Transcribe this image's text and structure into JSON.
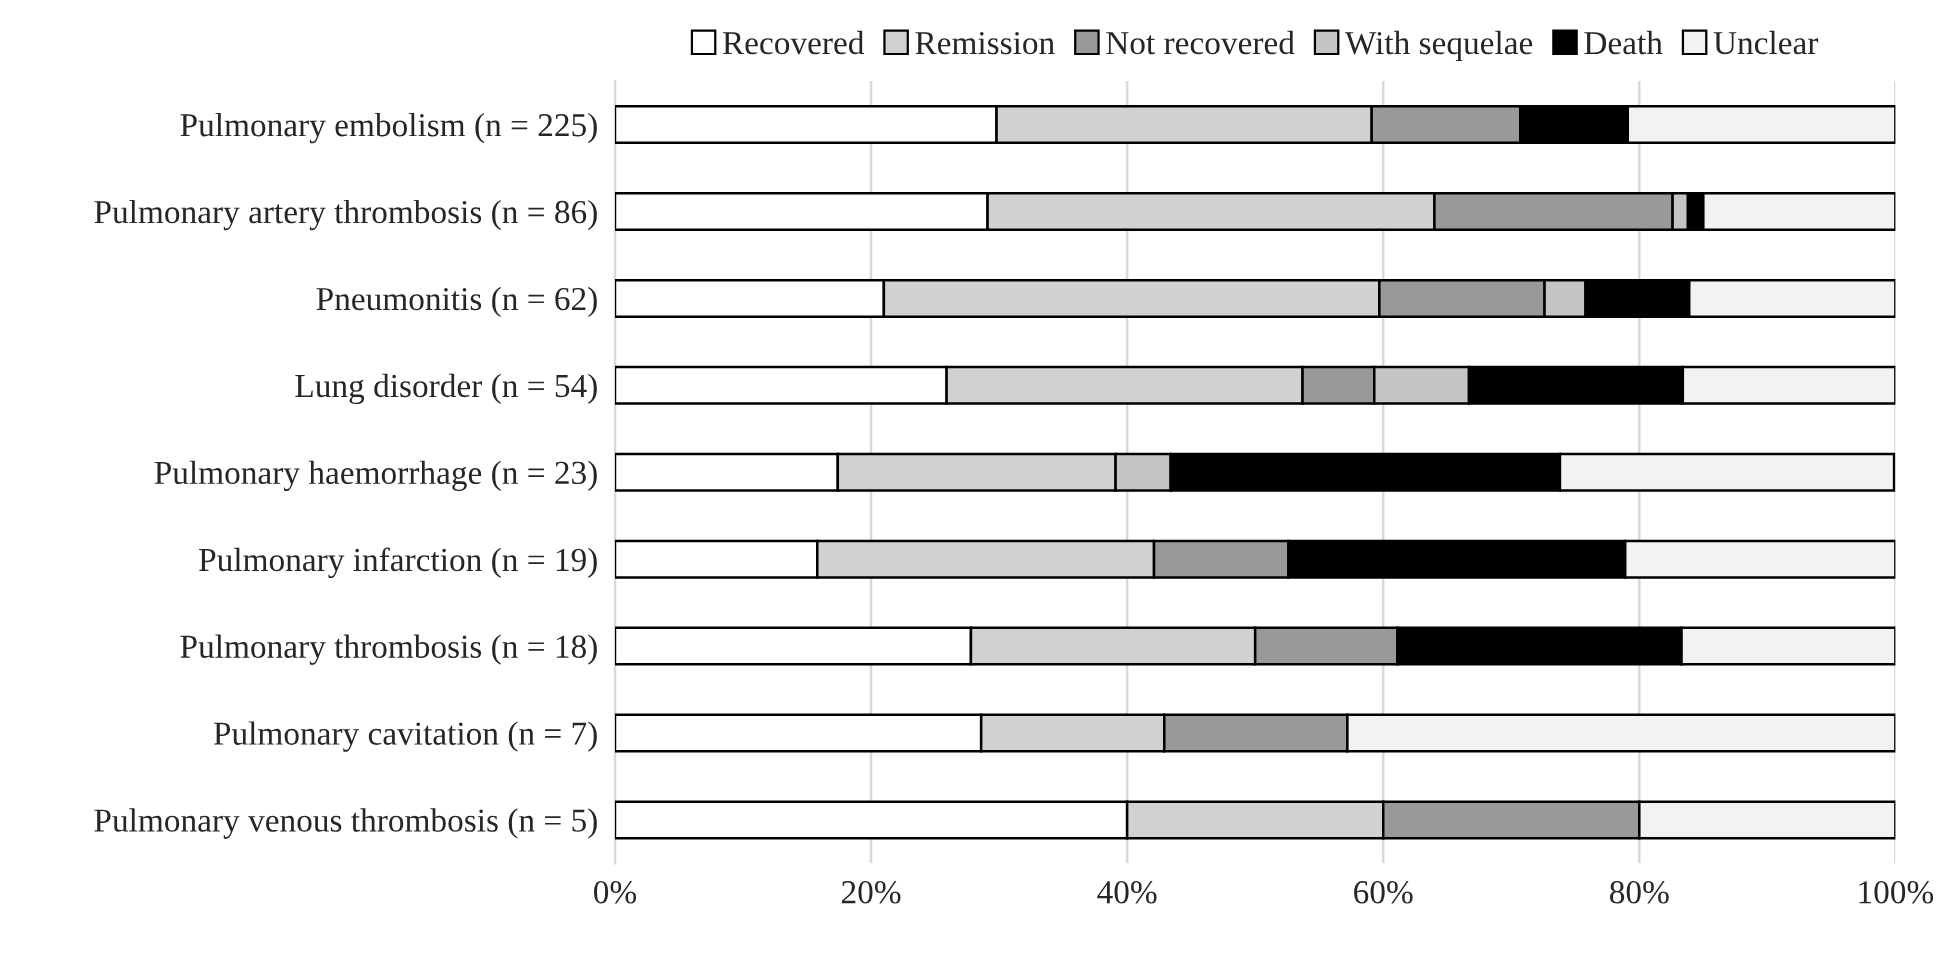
{
  "chart_data": {
    "type": "bar",
    "orientation": "horizontal",
    "stacked": true,
    "categories": [
      "Pulmonary embolism (n = 225)",
      "Pulmonary artery thrombosis (n = 86)",
      "Pneumonitis (n = 62)",
      "Lung disorder (n = 54)",
      "Pulmonary haemorrhage (n = 23)",
      "Pulmonary infarction (n = 19)",
      "Pulmonary thrombosis (n = 18)",
      "Pulmonary cavitation (n = 7)",
      "Pulmonary venous thrombosis (n = 5)"
    ],
    "series": [
      {
        "name": "Recovered",
        "color": "#ffffff",
        "values": [
          29.8,
          29.1,
          21.0,
          25.9,
          17.4,
          15.8,
          27.8,
          28.6,
          40
        ]
      },
      {
        "name": "Remission",
        "color": "#d0d1d0",
        "values": [
          29.3,
          34.9,
          38.7,
          27.8,
          21.7,
          26.3,
          22.2,
          14.3,
          20
        ]
      },
      {
        "name": "Not recovered",
        "color": "#999999",
        "values": [
          11.6,
          18.6,
          12.9,
          5.6,
          0,
          10.5,
          11.1,
          14.3,
          20
        ]
      },
      {
        "name": "With sequelae",
        "color": "#c4c4c4",
        "values": [
          0,
          1.2,
          3.2,
          7.4,
          4.3,
          0,
          0,
          0,
          0
        ]
      },
      {
        "name": "Death",
        "color": "#000000",
        "values": [
          8.4,
          1.2,
          8.1,
          16.7,
          30.4,
          26.3,
          22.2,
          0,
          0
        ]
      },
      {
        "name": "Unclear",
        "color": "#f2f2f2",
        "values": [
          20.9,
          15.0,
          16.1,
          16.6,
          26.1,
          21.1,
          16.7,
          42.8,
          20
        ]
      }
    ],
    "xlim": [
      0,
      100
    ],
    "xticks": [
      {
        "value": 0,
        "label": "0%"
      },
      {
        "value": 20,
        "label": "20%"
      },
      {
        "value": 40,
        "label": "40%"
      },
      {
        "value": 60,
        "label": "60%"
      },
      {
        "value": 80,
        "label": "80%"
      },
      {
        "value": 100,
        "label": "100%"
      }
    ],
    "grid": "x",
    "legend": "top"
  }
}
